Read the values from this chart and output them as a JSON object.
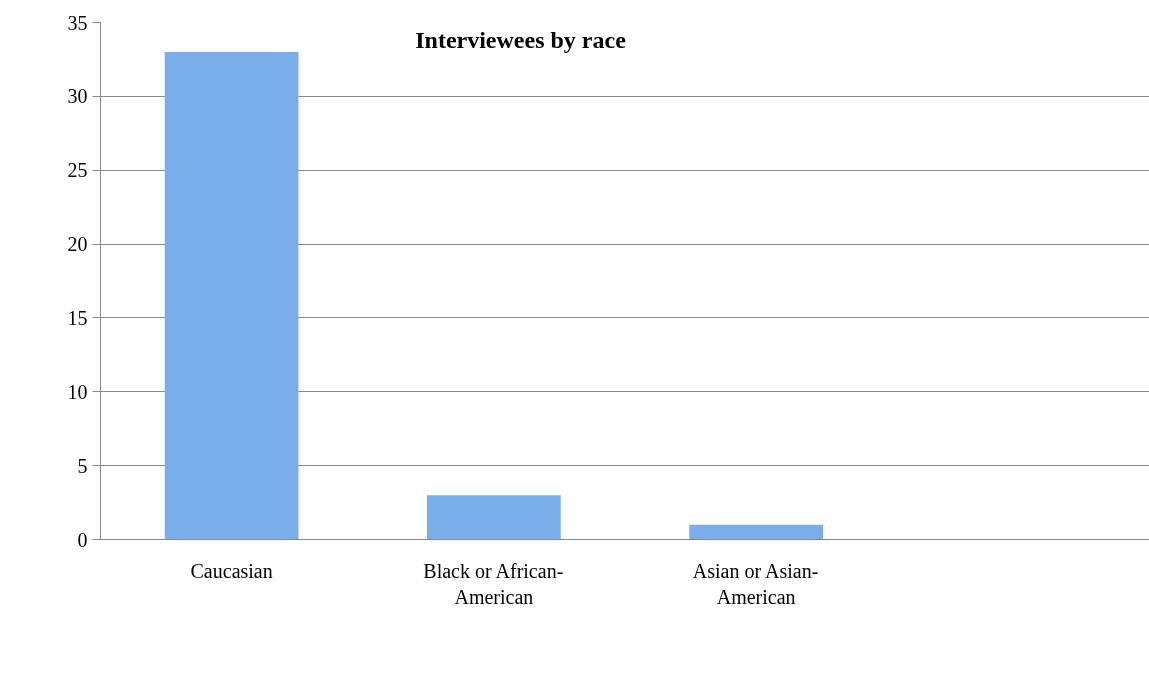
{
  "chart_data": {
    "type": "bar",
    "title": "Interviewees by race",
    "categories": [
      "Caucasian",
      "Black or African-American",
      "Asian or Asian-American",
      null
    ],
    "values": [
      33,
      3,
      1,
      null
    ],
    "color": "#7aaeea",
    "ylim": [
      0,
      35
    ],
    "yticks": [
      0,
      5,
      10,
      15,
      20,
      25,
      30,
      35
    ],
    "grid": "y"
  }
}
